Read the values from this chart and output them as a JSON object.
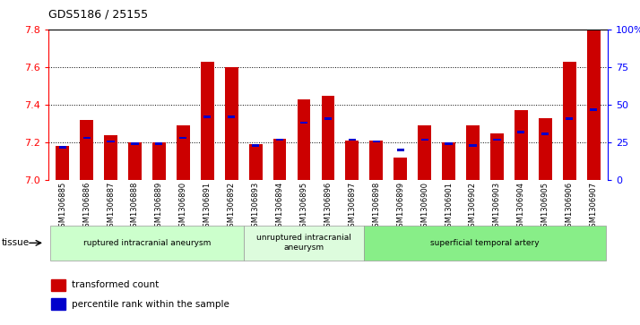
{
  "title": "GDS5186 / 25155",
  "samples": [
    "GSM1306885",
    "GSM1306886",
    "GSM1306887",
    "GSM1306888",
    "GSM1306889",
    "GSM1306890",
    "GSM1306891",
    "GSM1306892",
    "GSM1306893",
    "GSM1306894",
    "GSM1306895",
    "GSM1306896",
    "GSM1306897",
    "GSM1306898",
    "GSM1306899",
    "GSM1306900",
    "GSM1306901",
    "GSM1306902",
    "GSM1306903",
    "GSM1306904",
    "GSM1306905",
    "GSM1306906",
    "GSM1306907"
  ],
  "transformed_count": [
    7.18,
    7.32,
    7.24,
    7.2,
    7.2,
    7.29,
    7.63,
    7.6,
    7.19,
    7.22,
    7.43,
    7.45,
    7.21,
    7.21,
    7.12,
    7.29,
    7.2,
    7.29,
    7.25,
    7.37,
    7.33,
    7.63,
    7.8
  ],
  "percentile_rank": [
    7.175,
    7.225,
    7.205,
    7.195,
    7.195,
    7.225,
    7.335,
    7.335,
    7.185,
    7.215,
    7.305,
    7.325,
    7.215,
    7.205,
    7.16,
    7.215,
    7.195,
    7.185,
    7.215,
    7.255,
    7.245,
    7.325,
    7.375
  ],
  "y_min": 7.0,
  "y_max": 7.8,
  "y_ticks": [
    7.0,
    7.2,
    7.4,
    7.6,
    7.8
  ],
  "right_ticks": [
    0,
    25,
    50,
    75,
    100
  ],
  "right_tick_labels": [
    "0",
    "25",
    "50",
    "75",
    "100%"
  ],
  "bar_color": "#cc0000",
  "percentile_color": "#0000cc",
  "groups": [
    {
      "label": "ruptured intracranial aneurysm",
      "start": 0,
      "end": 8,
      "color": "#ccffcc"
    },
    {
      "label": "unruptured intracranial\naneurysm",
      "start": 8,
      "end": 13,
      "color": "#ddfcdd"
    },
    {
      "label": "superficial temporal artery",
      "start": 13,
      "end": 23,
      "color": "#88ee88"
    }
  ],
  "legend_items": [
    {
      "label": "transformed count",
      "color": "#cc0000"
    },
    {
      "label": "percentile rank within the sample",
      "color": "#0000cc"
    }
  ],
  "tissue_label": "tissue"
}
